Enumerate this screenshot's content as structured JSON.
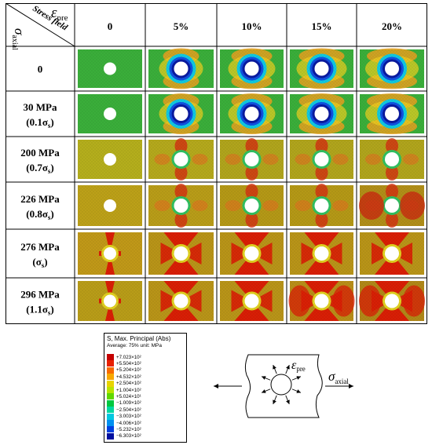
{
  "header": {
    "eps_symbol": "ε",
    "eps_sub": "pre",
    "stress_field": "Stress field",
    "sigma_symbol": "σ",
    "sigma_sub": "axial"
  },
  "columns": [
    "0",
    "5%",
    "10%",
    "15%",
    "20%"
  ],
  "rows": [
    {
      "line1": "0",
      "line2": "",
      "sub": ""
    },
    {
      "line1": "30 MPa",
      "line2": "(0.1σ",
      "sub": "s",
      "close": ")"
    },
    {
      "line1": "200 MPa",
      "line2": "(0.7σ",
      "sub": "s",
      "close": ")"
    },
    {
      "line1": "226 MPa",
      "line2": "(0.8σ",
      "sub": "s",
      "close": ")"
    },
    {
      "line1": "276 MPa",
      "line2": "(σ",
      "sub": "s",
      "close": ")"
    },
    {
      "line1": "296 MPa",
      "line2": "(1.1σ",
      "sub": "s",
      "close": ")"
    }
  ],
  "legend": {
    "title": "S, Max. Principal (Abs)",
    "subtitle": "Average: 75%  unit: MPa",
    "items": [
      {
        "value": "+7.023×10²",
        "color": "#c40000"
      },
      {
        "value": "+5.504×10²",
        "color": "#e82000"
      },
      {
        "value": "+5.204×10²",
        "color": "#f86a00"
      },
      {
        "value": "+4.532×10²",
        "color": "#f8a800"
      },
      {
        "value": "+2.504×10²",
        "color": "#e8d400"
      },
      {
        "value": "+1.004×10²",
        "color": "#b8e400"
      },
      {
        "value": "+5.024×10¹",
        "color": "#60d800"
      },
      {
        "value": "−1.009×10²",
        "color": "#00c840"
      },
      {
        "value": "−2.504×10²",
        "color": "#00d8a0"
      },
      {
        "value": "−3.003×10²",
        "color": "#00c8e0"
      },
      {
        "value": "−4.006×10²",
        "color": "#0090f0"
      },
      {
        "value": "−5.232×10²",
        "color": "#0040e0"
      },
      {
        "value": "−6.303×10²",
        "color": "#0010a0"
      }
    ]
  },
  "schematic": {
    "eps_symbol": "ε",
    "eps_sub": "pre",
    "sigma_symbol": "σ",
    "sigma_sub": "axial"
  },
  "colors": {
    "red": "#d81e05",
    "green": "#3cb43c",
    "blue": "#1a3acc",
    "olive": "#b8a818",
    "orange": "#e07818"
  }
}
